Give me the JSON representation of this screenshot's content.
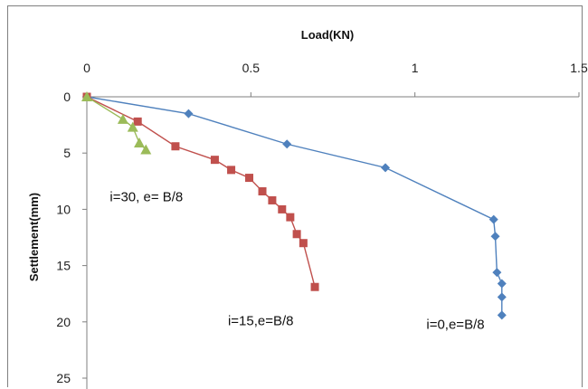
{
  "chart_data": {
    "type": "scatter",
    "title": "",
    "xlabel": "Load(KN)",
    "ylabel": "Settlement(mm)",
    "xlim": [
      0,
      1.5
    ],
    "ylim": [
      0,
      25
    ],
    "y_inverted": true,
    "x_axis_position": "top",
    "grid": false,
    "legend": "none",
    "x_ticks": [
      0,
      0.5,
      1,
      1.5
    ],
    "x_tick_labels": [
      "0",
      "0.5",
      "1",
      "1.5"
    ],
    "y_ticks": [
      0,
      5,
      10,
      15,
      20,
      25
    ],
    "y_tick_labels": [
      "0",
      "5",
      "10",
      "15",
      "20",
      "25"
    ],
    "series": [
      {
        "color": "#4f81bd",
        "marker": "diamond",
        "x": [
          0,
          0.31,
          0.61,
          0.91,
          1.24,
          1.245,
          1.25,
          1.265,
          1.265,
          1.265
        ],
        "y": [
          0,
          1.5,
          4.2,
          6.3,
          10.9,
          12.4,
          15.6,
          16.6,
          17.8,
          19.4
        ]
      },
      {
        "color": "#c0504d",
        "marker": "square",
        "x": [
          0,
          0.155,
          0.27,
          0.39,
          0.44,
          0.495,
          0.535,
          0.565,
          0.595,
          0.62,
          0.64,
          0.66,
          0.695
        ],
        "y": [
          0,
          2.2,
          4.4,
          5.6,
          6.5,
          7.2,
          8.4,
          9.2,
          10.0,
          10.7,
          12.2,
          13.0,
          16.9
        ]
      },
      {
        "color": "#9bbb59",
        "marker": "triangle",
        "x": [
          0,
          0.11,
          0.14,
          0.16,
          0.18
        ],
        "y": [
          0,
          2.0,
          2.7,
          4.1,
          4.7
        ]
      }
    ],
    "annotations": [
      {
        "text": "i=30, e= B/8",
        "x": 0.07,
        "y": 9.3
      },
      {
        "text": "i=15,e=B/8",
        "x": 0.43,
        "y": 20.3
      },
      {
        "text": "i=0,e=B/8",
        "x": 1.035,
        "y": 20.6
      }
    ]
  }
}
